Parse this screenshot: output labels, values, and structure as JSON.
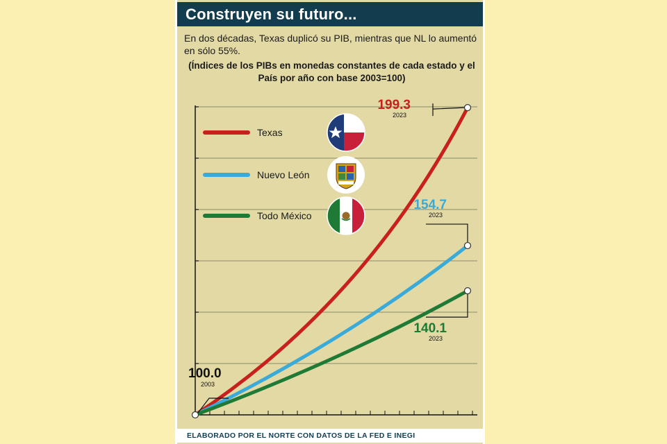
{
  "header": {
    "title": "Construyen su futuro...",
    "subtitle": "En dos décadas, Texas duplicó su PIB, mientras que NL lo aumentó en sólo 55%.",
    "note": "(Índices de los PIBs en monedas constantes de cada estado y el País por año con base 2003=100)"
  },
  "footer": {
    "credit": "ELABORADO POR EL NORTE CON DATOS DE LA FED E INEGI"
  },
  "chart_data": {
    "type": "line",
    "x": [
      2003,
      2023
    ],
    "ylim": [
      100,
      200
    ],
    "grid": true,
    "legend_position": "top-left",
    "series": [
      {
        "name": "Texas",
        "color": "#c8201c",
        "values": [
          100.0,
          199.3
        ],
        "end_label": "199.3",
        "year_label": "2023",
        "icon": "texas-flag-icon"
      },
      {
        "name": "Nuevo León",
        "color": "#3aaad8",
        "values": [
          100.0,
          154.7
        ],
        "end_label": "154.7",
        "year_label": "2023",
        "icon": "nuevo-leon-coat-of-arms-icon"
      },
      {
        "name": "Todo México",
        "color": "#1e7a35",
        "values": [
          100.0,
          140.1
        ],
        "end_label": "140.1",
        "year_label": "2023",
        "icon": "mexico-flag-icon"
      }
    ],
    "start_label": "100.0",
    "start_year_label": "2003"
  }
}
